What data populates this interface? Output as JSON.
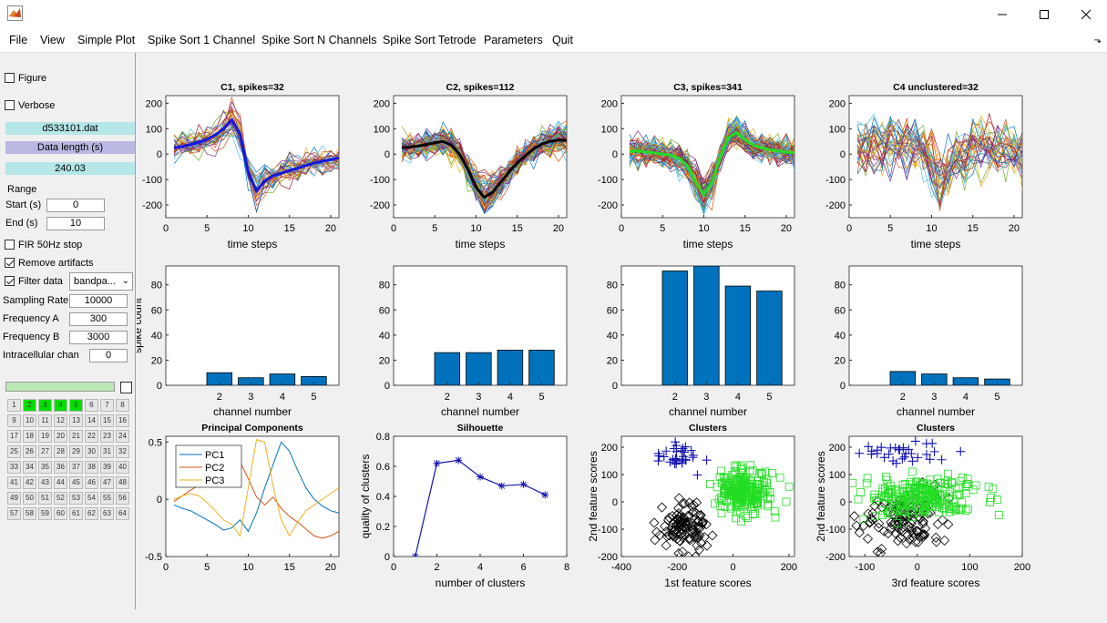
{
  "window": {
    "controls": {
      "minimize": "—",
      "maximize": "☐",
      "close": "✕"
    },
    "icon": "matlab-icon"
  },
  "menu": {
    "items": [
      "File",
      "View",
      "Simple Plot",
      "Spike Sort 1 Channel",
      "Spike Sort N Channels",
      "Spike Sort Tetrode",
      "Parameters",
      "Quit"
    ],
    "grip": "⬎"
  },
  "left_panel": {
    "figure_label": "Figure",
    "figure_checked": false,
    "verbose_label": "Verbose",
    "verbose_checked": false,
    "filename": "d533101.dat",
    "data_length_label": "Data length (s)",
    "data_length_value": "240.03",
    "range_label": "Range",
    "start_label": "Start (s)",
    "start_value": "0",
    "end_label": "End (s)",
    "end_value": "10",
    "fir_label": "FIR 50Hz stop",
    "fir_checked": false,
    "remove_artifacts_label": "Remove artifacts",
    "remove_artifacts_checked": true,
    "filter_label": "Filter data",
    "filter_checked": true,
    "filter_type": "bandpa...",
    "sampling_rate_label": "Sampling Rate",
    "sampling_rate_value": "10000",
    "freq_a_label": "Frequency A",
    "freq_a_value": "300",
    "freq_b_label": "Frequency B",
    "freq_b_value": "3000",
    "intracellular_label": "Intracellular chan",
    "intracellular_value": "0",
    "channels": [
      "1",
      "2",
      "3",
      "4",
      "5",
      "6",
      "7",
      "8",
      "9",
      "10",
      "11",
      "12",
      "13",
      "14",
      "15",
      "16",
      "17",
      "18",
      "19",
      "20",
      "21",
      "22",
      "23",
      "24",
      "25",
      "26",
      "27",
      "28",
      "29",
      "30",
      "31",
      "32",
      "33",
      "34",
      "35",
      "36",
      "37",
      "38",
      "39",
      "40",
      "41",
      "42",
      "43",
      "44",
      "45",
      "46",
      "47",
      "48",
      "49",
      "50",
      "51",
      "52",
      "53",
      "54",
      "55",
      "56",
      "57",
      "58",
      "59",
      "60",
      "61",
      "62",
      "63",
      "64"
    ],
    "selected_channels": [
      "2",
      "3",
      "4",
      "5"
    ],
    "colors": {
      "info_cyan": "#b5e6e8",
      "info_lavender": "#b9b9e4",
      "progress_green": "#b9e8b5",
      "channel_on": "#00e000"
    }
  },
  "chart_data": [
    {
      "type": "line",
      "title": "C1, spikes=32",
      "xlabel": "time steps",
      "ylabel": "",
      "xlim": [
        0,
        21
      ],
      "ylim": [
        -250,
        230
      ],
      "xticks": [
        0,
        5,
        10,
        15,
        20
      ],
      "yticks": [
        -200,
        -100,
        0,
        100,
        200
      ],
      "mean": [
        25,
        30,
        38,
        46,
        58,
        75,
        100,
        135,
        80,
        -70,
        -145,
        -105,
        -85,
        -75,
        -65,
        -55,
        -45,
        -35,
        -28,
        -22,
        -15
      ],
      "line_color": "#1515e0",
      "trace_count": 32,
      "grid": false
    },
    {
      "type": "line",
      "title": "C2, spikes=112",
      "xlabel": "time steps",
      "ylabel": "",
      "xlim": [
        0,
        21
      ],
      "ylim": [
        -250,
        230
      ],
      "xticks": [
        0,
        5,
        10,
        15,
        20
      ],
      "yticks": [
        -200,
        -100,
        0,
        100,
        200
      ],
      "mean": [
        25,
        28,
        32,
        38,
        45,
        50,
        35,
        0,
        -60,
        -130,
        -170,
        -150,
        -110,
        -70,
        -35,
        -5,
        20,
        40,
        50,
        55,
        55
      ],
      "line_color": "#000000",
      "trace_count": 112,
      "grid": false
    },
    {
      "type": "line",
      "title": "C3, spikes=341",
      "xlabel": "time steps",
      "ylabel": "",
      "xlim": [
        0,
        21
      ],
      "ylim": [
        -250,
        230
      ],
      "xticks": [
        0,
        5,
        10,
        15,
        20
      ],
      "yticks": [
        -200,
        -100,
        0,
        100,
        200
      ],
      "mean": [
        10,
        12,
        8,
        5,
        0,
        -5,
        -15,
        -45,
        -110,
        -160,
        -110,
        -10,
        65,
        85,
        55,
        35,
        25,
        18,
        12,
        8,
        5
      ],
      "line_color": "#22dd22",
      "trace_count": 341,
      "grid": false
    },
    {
      "type": "line",
      "title": "C4 unclustered=32",
      "xlabel": "time steps",
      "ylabel": "",
      "xlim": [
        0,
        21
      ],
      "ylim": [
        -250,
        230
      ],
      "xticks": [
        0,
        5,
        10,
        15,
        20
      ],
      "yticks": [
        -200,
        -100,
        0,
        100,
        200
      ],
      "mean": null,
      "trace_count": 32,
      "grid": false
    },
    {
      "type": "bar",
      "title": "",
      "categories": [
        "2",
        "3",
        "4",
        "5"
      ],
      "values": [
        10,
        6,
        9,
        7
      ],
      "xlabel": "channel number",
      "ylabel": "spike count",
      "ylim": [
        0,
        95
      ],
      "yticks": [
        0,
        20,
        40,
        60,
        80
      ],
      "bar_color": "#0072bd"
    },
    {
      "type": "bar",
      "title": "",
      "categories": [
        "2",
        "3",
        "4",
        "5"
      ],
      "values": [
        26,
        26,
        28,
        28
      ],
      "xlabel": "channel number",
      "ylabel": "",
      "ylim": [
        0,
        95
      ],
      "yticks": [
        0,
        20,
        40,
        60,
        80
      ],
      "bar_color": "#0072bd"
    },
    {
      "type": "bar",
      "title": "",
      "categories": [
        "2",
        "3",
        "4",
        "5"
      ],
      "values": [
        91,
        95,
        79,
        75
      ],
      "xlabel": "channel number",
      "ylabel": "",
      "ylim": [
        0,
        95
      ],
      "yticks": [
        0,
        20,
        40,
        60,
        80
      ],
      "bar_color": "#0072bd"
    },
    {
      "type": "bar",
      "title": "",
      "categories": [
        "2",
        "3",
        "4",
        "5"
      ],
      "values": [
        11,
        9,
        6,
        5
      ],
      "xlabel": "channel number",
      "ylabel": "",
      "ylim": [
        0,
        95
      ],
      "yticks": [
        0,
        20,
        40,
        60,
        80
      ],
      "bar_color": "#0072bd"
    },
    {
      "type": "line",
      "title": "Principal Components",
      "xlabel": "",
      "ylabel": "",
      "xlim": [
        0,
        21
      ],
      "ylim": [
        -0.5,
        0.55
      ],
      "xticks": [
        0,
        5,
        10,
        15,
        20
      ],
      "yticks": [
        -0.5,
        0,
        0.5
      ],
      "legend": "top-left",
      "series": [
        {
          "name": "PC1",
          "color": "#0072bd",
          "x": [
            1,
            2,
            3,
            4,
            5,
            6,
            7,
            8,
            9,
            10,
            11,
            12,
            13,
            14,
            15,
            16,
            17,
            18,
            19,
            20,
            21
          ],
          "y": [
            -0.05,
            -0.08,
            -0.1,
            -0.14,
            -0.18,
            -0.22,
            -0.27,
            -0.25,
            -0.18,
            -0.28,
            -0.12,
            0.1,
            0.3,
            0.5,
            0.42,
            0.25,
            0.1,
            0.0,
            -0.06,
            -0.1,
            -0.12
          ]
        },
        {
          "name": "PC2",
          "color": "#d95319",
          "x": [
            1,
            2,
            3,
            4,
            5,
            6,
            7,
            8,
            9,
            10,
            11,
            12,
            13,
            14,
            15,
            16,
            17,
            18,
            19,
            20,
            21
          ],
          "y": [
            -0.02,
            0.03,
            0.08,
            0.12,
            0.15,
            0.2,
            0.27,
            0.32,
            0.33,
            0.18,
            0.02,
            -0.05,
            0.02,
            -0.08,
            -0.15,
            -0.2,
            -0.26,
            -0.32,
            -0.34,
            -0.32,
            -0.28
          ]
        },
        {
          "name": "PC3",
          "color": "#edb120",
          "x": [
            1,
            2,
            3,
            4,
            5,
            6,
            7,
            8,
            9,
            10,
            11,
            12,
            13,
            14,
            15,
            16,
            17,
            18,
            19,
            20,
            21
          ],
          "y": [
            0.0,
            0.03,
            0.05,
            0.03,
            -0.03,
            -0.1,
            -0.18,
            -0.22,
            -0.32,
            0.1,
            0.52,
            0.5,
            0.12,
            -0.18,
            -0.32,
            -0.2,
            -0.1,
            -0.05,
            0.0,
            0.05,
            0.1
          ]
        }
      ]
    },
    {
      "type": "line",
      "title": "Silhouette",
      "xlabel": "number of clusters",
      "ylabel": "quality of clusters",
      "xlim": [
        0,
        8
      ],
      "ylim": [
        0,
        0.8
      ],
      "xticks": [
        0,
        2,
        4,
        6,
        8
      ],
      "yticks": [
        0,
        0.2,
        0.4,
        0.6,
        0.8
      ],
      "series": [
        {
          "x": [
            1,
            2,
            3,
            4,
            5,
            6,
            7
          ],
          "y": [
            0.0,
            0.62,
            0.64,
            0.53,
            0.47,
            0.48,
            0.41
          ]
        }
      ],
      "marker": "asterisk",
      "color": "#1515b0"
    },
    {
      "type": "scatter",
      "title": "Clusters",
      "xlabel": "1st feature scores",
      "ylabel": "2nd feature scores",
      "xlim": [
        -400,
        220
      ],
      "ylim": [
        -200,
        240
      ],
      "xticks": [
        -400,
        -200,
        0,
        200
      ],
      "yticks": [
        -200,
        -100,
        0,
        100,
        200
      ],
      "clusters": [
        {
          "marker": "plus",
          "color": "#1515b0",
          "cx": -200,
          "cy": 170,
          "sx": 45,
          "sy": 30,
          "n": 32
        },
        {
          "marker": "diamond",
          "color": "#000000",
          "cx": -170,
          "cy": -90,
          "sx": 45,
          "sy": 45,
          "n": 112
        },
        {
          "marker": "square",
          "color": "#22dd22",
          "cx": 40,
          "cy": 40,
          "sx": 50,
          "sy": 40,
          "n": 341
        }
      ]
    },
    {
      "type": "scatter",
      "title": "Clusters",
      "xlabel": "3rd feature scores",
      "ylabel": "2nd feature scores",
      "xlim": [
        -130,
        200
      ],
      "ylim": [
        -200,
        240
      ],
      "xticks": [
        -100,
        0,
        100,
        200
      ],
      "yticks": [
        -200,
        -100,
        0,
        100,
        200
      ],
      "clusters": [
        {
          "marker": "plus",
          "color": "#1515b0",
          "cx": -40,
          "cy": 180,
          "sx": 45,
          "sy": 25,
          "n": 32
        },
        {
          "marker": "diamond",
          "color": "#000000",
          "cx": -20,
          "cy": -70,
          "sx": 40,
          "sy": 50,
          "n": 112
        },
        {
          "marker": "square",
          "color": "#22dd22",
          "cx": 10,
          "cy": 20,
          "sx": 55,
          "sy": 35,
          "n": 341
        }
      ]
    }
  ]
}
